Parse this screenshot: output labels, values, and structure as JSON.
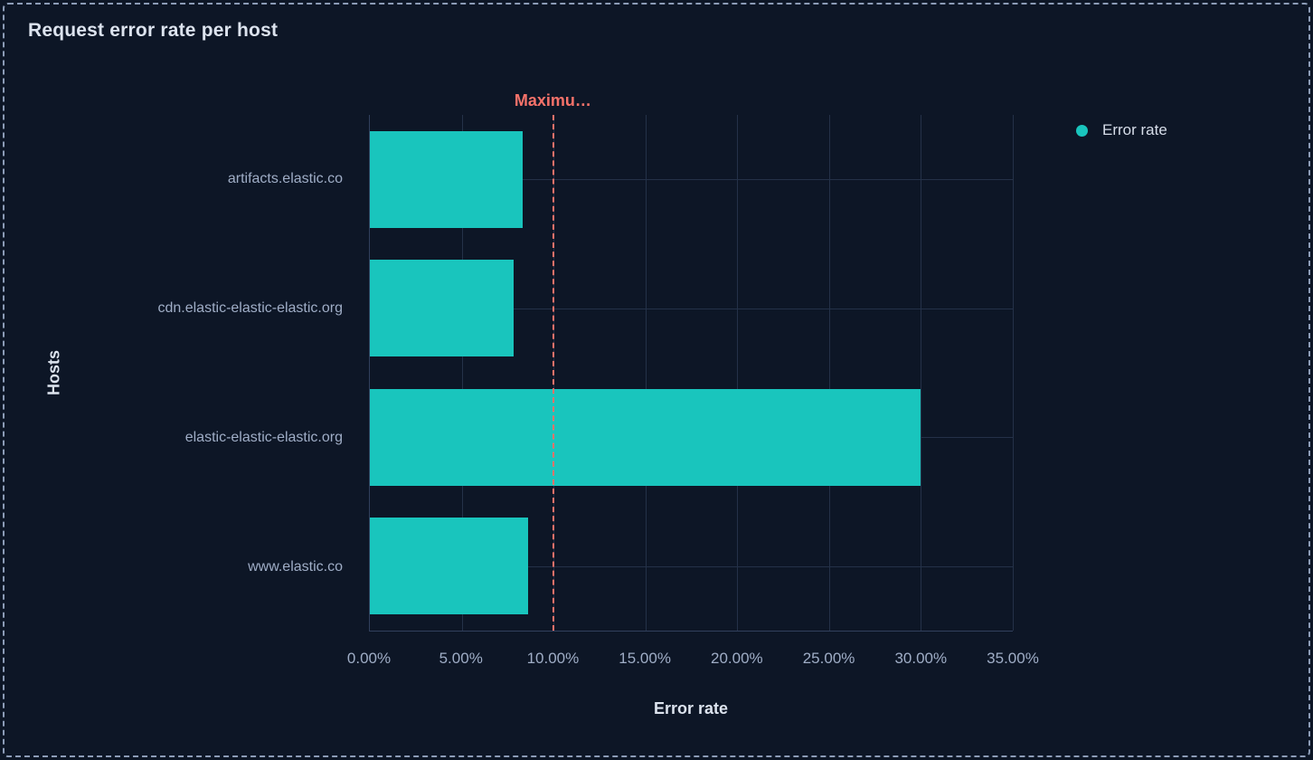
{
  "panel": {
    "title": "Request error rate per host"
  },
  "colors": {
    "background": "#0d1626",
    "panel_border": "#8c9cb7",
    "bar": "#19c5bd",
    "threshold": "#f6726a",
    "grid": "#243148",
    "axis": "#31405d",
    "text_primary": "#dce3ee",
    "text_secondary": "#9fadc6"
  },
  "chart_data": {
    "type": "bar",
    "orientation": "horizontal",
    "title": "Request error rate per host",
    "categories": [
      "artifacts.elastic.co",
      "cdn.elastic-elastic-elastic.org",
      "elastic-elastic-elastic.org",
      "www.elastic.co"
    ],
    "series": [
      {
        "name": "Error rate",
        "values": [
          8.3,
          7.85,
          30.0,
          8.6
        ]
      }
    ],
    "xlabel": "Error rate",
    "ylabel": "Hosts",
    "xlim": [
      0,
      35
    ],
    "xticks": [
      "0.00%",
      "5.00%",
      "10.00%",
      "15.00%",
      "20.00%",
      "25.00%",
      "30.00%",
      "35.00%"
    ],
    "xtick_values": [
      0,
      5,
      10,
      15,
      20,
      25,
      30,
      35
    ],
    "grid": true,
    "threshold": {
      "value": 10,
      "label": "Maximu…"
    },
    "legend": {
      "position": "right",
      "items": [
        "Error rate"
      ]
    }
  }
}
